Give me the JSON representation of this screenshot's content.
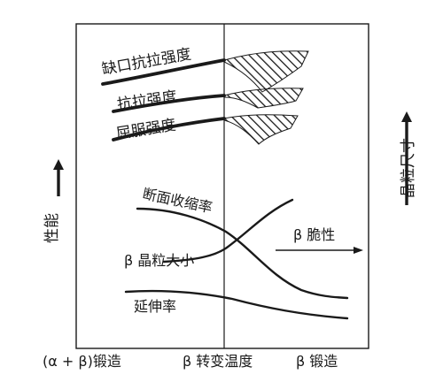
{
  "curves": {
    "notch_strength": "缺口抗拉强度",
    "tensile_strength": "抗拉强度",
    "yield_strength": "屈服强度",
    "reduction_of_area": "断面收缩率",
    "beta_grain_size": "β 晶粒大小",
    "elongation": "延伸率"
  },
  "annotations": {
    "beta_brittleness": "β 脆性"
  },
  "axes": {
    "left_label": "性能",
    "right_label": "晶粒尺寸"
  },
  "regions": {
    "alpha_beta_forging": "(α + β)锻造",
    "beta_transus": "β 转变温度",
    "beta_forging": "β 锻造"
  }
}
